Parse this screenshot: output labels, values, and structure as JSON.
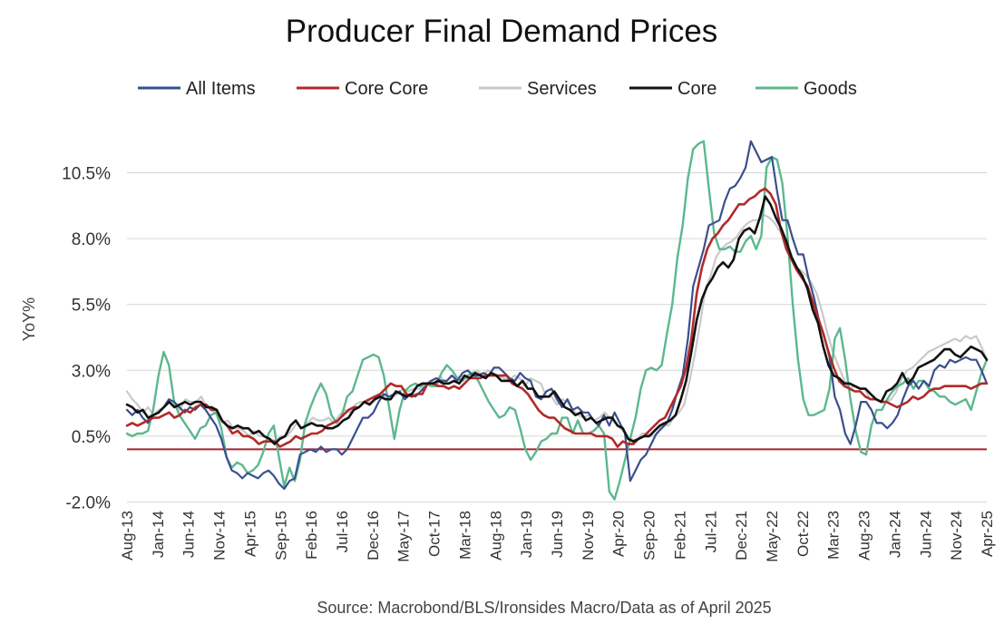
{
  "chart_data": {
    "type": "line",
    "title": "Producer Final Demand Prices",
    "ylabel": "YoY%",
    "xlabel": "",
    "source": "Source: Macrobond/BLS/Ironsides Macro/Data as of April 2025",
    "ylim": [
      -2.0,
      12.0
    ],
    "yticks": [
      -2.0,
      0.5,
      3.0,
      5.5,
      8.0,
      10.5
    ],
    "ytick_labels": [
      "-2.0%",
      "0.5%",
      "3.0%",
      "5.5%",
      "8.0%",
      "10.5%"
    ],
    "x_start": "2013-08",
    "x_end": "2025-04",
    "xtick_labels": [
      "Aug-13",
      "Jan-14",
      "Jun-14",
      "Nov-14",
      "Apr-15",
      "Sep-15",
      "Feb-16",
      "Jul-16",
      "Dec-16",
      "May-17",
      "Oct-17",
      "Mar-18",
      "Aug-18",
      "Jan-19",
      "Jun-19",
      "Nov-19",
      "Apr-20",
      "Sep-20",
      "Feb-21",
      "Jul-21",
      "Dec-21",
      "May-22",
      "Oct-22",
      "Mar-23",
      "Aug-23",
      "Jan-24",
      "Jun-24",
      "Nov-24",
      "Apr-25"
    ],
    "grid": true,
    "legend_position": "top",
    "reference_line": {
      "value": 0.0,
      "color": "#a8232e"
    },
    "series": [
      {
        "name": "All Items",
        "color": "#3a4f8f",
        "values": [
          1.5,
          1.3,
          1.5,
          1.2,
          1.0,
          1.3,
          1.4,
          1.6,
          1.9,
          1.8,
          1.6,
          1.4,
          1.6,
          1.5,
          1.7,
          1.5,
          1.2,
          0.9,
          0.4,
          -0.3,
          -0.8,
          -0.9,
          -1.1,
          -0.9,
          -1.0,
          -1.1,
          -0.9,
          -0.8,
          -1.0,
          -1.3,
          -1.5,
          -1.2,
          -1.1,
          -0.2,
          -0.1,
          0.0,
          -0.1,
          0.1,
          -0.1,
          0.0,
          0.0,
          -0.2,
          0.0,
          0.4,
          0.8,
          1.2,
          1.2,
          1.4,
          1.8,
          2.1,
          2.0,
          2.1,
          2.2,
          1.9,
          2.1,
          2.0,
          2.2,
          2.4,
          2.6,
          2.7,
          2.6,
          2.6,
          2.8,
          2.6,
          2.9,
          3.0,
          2.8,
          2.8,
          2.9,
          2.8,
          3.1,
          3.1,
          2.9,
          2.7,
          2.6,
          2.9,
          2.7,
          2.6,
          2.0,
          1.9,
          2.2,
          2.3,
          1.9,
          1.6,
          1.9,
          1.5,
          1.6,
          1.4,
          1.4,
          1.1,
          0.9,
          1.3,
          0.9,
          1.4,
          1.0,
          0.6,
          -1.2,
          -0.8,
          -0.4,
          -0.2,
          0.2,
          0.6,
          0.8,
          1.0,
          1.5,
          2.2,
          2.8,
          4.2,
          6.2,
          6.9,
          7.6,
          8.5,
          8.6,
          8.7,
          9.4,
          9.9,
          10.0,
          10.3,
          10.7,
          11.7,
          11.3,
          10.9,
          11.0,
          11.1,
          9.8,
          8.7,
          8.7,
          8.0,
          7.4,
          7.4,
          6.5,
          5.8,
          4.9,
          4.3,
          3.5,
          2.0,
          1.5,
          0.6,
          0.2,
          0.9,
          1.8,
          1.8,
          1.5,
          1.0,
          1.0,
          0.8,
          1.0,
          1.3,
          1.9,
          2.4,
          2.6,
          2.3,
          2.6,
          2.4,
          3.0,
          3.2,
          3.1,
          3.4,
          3.3,
          3.4,
          3.5,
          3.4,
          3.4,
          3.0,
          2.5
        ]
      },
      {
        "name": "Core Core",
        "color": "#b22a2a",
        "values": [
          0.9,
          1.0,
          0.9,
          1.0,
          1.1,
          1.2,
          1.2,
          1.3,
          1.4,
          1.2,
          1.3,
          1.5,
          1.4,
          1.6,
          1.7,
          1.7,
          1.5,
          1.5,
          1.1,
          0.9,
          0.6,
          0.7,
          0.5,
          0.5,
          0.4,
          0.2,
          0.3,
          0.3,
          0.3,
          0.1,
          0.2,
          0.3,
          0.5,
          0.4,
          0.5,
          0.6,
          0.6,
          0.7,
          0.9,
          1.0,
          1.1,
          1.3,
          1.5,
          1.6,
          1.6,
          1.8,
          1.9,
          2.0,
          2.1,
          2.3,
          2.5,
          2.4,
          2.4,
          2.1,
          2.0,
          2.1,
          2.1,
          2.5,
          2.5,
          2.4,
          2.4,
          2.3,
          2.4,
          2.3,
          2.5,
          2.7,
          2.7,
          2.7,
          2.8,
          2.8,
          2.8,
          2.8,
          2.8,
          2.5,
          2.4,
          2.3,
          2.1,
          1.8,
          1.5,
          1.3,
          1.2,
          1.2,
          1.0,
          0.8,
          0.7,
          0.6,
          0.6,
          0.6,
          0.6,
          0.5,
          0.5,
          0.5,
          0.4,
          0.1,
          0.3,
          0.2,
          0.2,
          0.4,
          0.5,
          0.7,
          0.9,
          1.1,
          1.2,
          1.6,
          2.0,
          2.4,
          3.1,
          4.2,
          5.9,
          6.9,
          7.6,
          8.0,
          8.2,
          8.5,
          8.7,
          9.0,
          9.3,
          9.3,
          9.5,
          9.6,
          9.8,
          9.9,
          9.7,
          9.3,
          8.3,
          7.6,
          7.2,
          6.8,
          6.5,
          6.2,
          5.6,
          5.0,
          4.4,
          3.7,
          3.1,
          2.6,
          2.4,
          2.3,
          2.2,
          2.2,
          2.0,
          1.9,
          1.9,
          1.8,
          1.8,
          1.7,
          1.6,
          1.7,
          1.8,
          2.0,
          1.9,
          2.0,
          2.2,
          2.3,
          2.3,
          2.4,
          2.4,
          2.4,
          2.4,
          2.4,
          2.3,
          2.4,
          2.5,
          2.5
        ]
      },
      {
        "name": "Services",
        "color": "#c9c9c9",
        "values": [
          2.2,
          1.9,
          1.7,
          1.4,
          1.6,
          1.3,
          1.5,
          1.6,
          1.8,
          1.7,
          1.5,
          1.9,
          1.8,
          1.8,
          2.0,
          1.6,
          1.5,
          1.3,
          1.0,
          1.1,
          0.8,
          0.8,
          0.7,
          0.5,
          0.7,
          0.5,
          0.5,
          0.4,
          0.3,
          0.5,
          0.5,
          0.7,
          1.0,
          0.8,
          1.0,
          1.2,
          1.1,
          1.1,
          1.2,
          1.0,
          1.3,
          1.5,
          1.4,
          1.7,
          1.8,
          1.8,
          1.8,
          1.9,
          2.1,
          1.9,
          2.0,
          2.1,
          2.3,
          2.2,
          2.3,
          2.3,
          2.4,
          2.6,
          2.5,
          2.8,
          2.5,
          2.8,
          2.7,
          2.8,
          2.7,
          2.9,
          3.0,
          2.8,
          3.0,
          2.9,
          2.8,
          2.7,
          2.6,
          2.8,
          2.7,
          2.4,
          2.7,
          2.6,
          2.5,
          2.0,
          2.0,
          1.7,
          1.9,
          1.8,
          1.5,
          1.3,
          1.2,
          1.3,
          1.1,
          1.2,
          1.4,
          1.2,
          1.0,
          0.8,
          0.6,
          0.4,
          0.3,
          0.6,
          0.6,
          0.5,
          0.6,
          1.0,
          0.9,
          1.2,
          1.4,
          1.7,
          2.6,
          3.6,
          4.8,
          6.1,
          6.6,
          7.3,
          7.6,
          7.8,
          7.9,
          8.1,
          8.4,
          8.6,
          8.7,
          8.7,
          8.9,
          8.8,
          8.6,
          8.3,
          7.9,
          7.4,
          6.9,
          6.8,
          6.6,
          6.3,
          5.9,
          5.2,
          4.4,
          3.7,
          3.2,
          2.7,
          2.3,
          2.4,
          2.3,
          2.3,
          1.9,
          1.9,
          1.8,
          1.8,
          1.9,
          2.2,
          2.7,
          3.0,
          3.1,
          3.3,
          3.5,
          3.7,
          3.8,
          3.9,
          4.0,
          4.1,
          4.2,
          4.1,
          4.3,
          4.2,
          4.3,
          3.9,
          3.4
        ]
      },
      {
        "name": "Core",
        "color": "#111111",
        "values": [
          1.7,
          1.6,
          1.4,
          1.5,
          1.2,
          1.3,
          1.4,
          1.6,
          1.8,
          1.6,
          1.7,
          1.8,
          1.7,
          1.8,
          1.8,
          1.6,
          1.6,
          1.5,
          1.1,
          0.9,
          0.8,
          0.9,
          0.8,
          0.8,
          0.6,
          0.7,
          0.5,
          0.4,
          0.2,
          0.4,
          0.5,
          0.9,
          1.1,
          0.8,
          0.9,
          1.0,
          0.9,
          0.9,
          0.8,
          0.8,
          0.9,
          1.1,
          1.2,
          1.5,
          1.6,
          1.8,
          1.7,
          1.9,
          2.0,
          1.9,
          1.9,
          2.2,
          2.1,
          2.0,
          2.1,
          2.4,
          2.5,
          2.5,
          2.5,
          2.6,
          2.5,
          2.5,
          2.6,
          2.5,
          2.8,
          2.7,
          2.9,
          2.8,
          2.7,
          2.9,
          2.8,
          2.6,
          2.6,
          2.6,
          2.4,
          2.6,
          2.3,
          2.3,
          2.0,
          2.0,
          2.0,
          2.2,
          1.9,
          1.6,
          1.5,
          1.3,
          1.4,
          1.1,
          1.2,
          1.0,
          1.1,
          1.2,
          1.2,
          0.9,
          0.8,
          0.4,
          0.3,
          0.4,
          0.5,
          0.5,
          0.7,
          0.9,
          1.0,
          1.1,
          1.3,
          1.9,
          2.6,
          3.7,
          4.9,
          5.7,
          6.2,
          6.5,
          6.9,
          7.1,
          6.9,
          7.2,
          8.0,
          8.3,
          8.4,
          8.2,
          8.8,
          9.6,
          9.3,
          8.8,
          8.4,
          7.9,
          7.3,
          6.9,
          6.6,
          6.1,
          5.3,
          4.8,
          3.9,
          3.2,
          2.8,
          2.7,
          2.5,
          2.5,
          2.4,
          2.3,
          2.3,
          2.1,
          1.9,
          1.8,
          2.2,
          2.3,
          2.5,
          2.9,
          2.5,
          2.7,
          3.1,
          3.2,
          3.3,
          3.4,
          3.6,
          3.8,
          3.8,
          3.6,
          3.5,
          3.7,
          3.9,
          3.8,
          3.7,
          3.4
        ]
      },
      {
        "name": "Goods",
        "color": "#5cb88e",
        "values": [
          0.6,
          0.5,
          0.6,
          0.6,
          0.7,
          1.5,
          2.8,
          3.7,
          3.2,
          1.8,
          1.3,
          1.0,
          0.7,
          0.4,
          0.8,
          0.9,
          1.3,
          1.4,
          0.8,
          -0.3,
          -0.7,
          -0.5,
          -0.6,
          -0.9,
          -0.8,
          -0.6,
          -0.1,
          0.6,
          0.9,
          -0.3,
          -1.4,
          -0.7,
          -1.2,
          -0.4,
          1.0,
          1.6,
          2.1,
          2.5,
          2.1,
          1.3,
          1.0,
          1.3,
          2.0,
          2.2,
          2.8,
          3.4,
          3.5,
          3.6,
          3.5,
          2.8,
          1.6,
          0.4,
          1.5,
          2.2,
          2.4,
          2.5,
          2.4,
          2.5,
          2.4,
          2.4,
          2.9,
          3.2,
          3.0,
          2.7,
          2.6,
          2.8,
          2.9,
          2.6,
          2.2,
          1.8,
          1.5,
          1.2,
          1.3,
          1.6,
          1.5,
          0.8,
          0.0,
          -0.4,
          -0.1,
          0.3,
          0.4,
          0.6,
          0.6,
          1.2,
          1.2,
          0.6,
          1.1,
          0.6,
          0.6,
          0.7,
          0.9,
          0.6,
          -1.6,
          -1.9,
          -1.2,
          -0.4,
          0.4,
          1.2,
          2.3,
          3.0,
          3.1,
          3.0,
          3.2,
          4.4,
          5.5,
          7.3,
          8.5,
          10.3,
          11.4,
          11.6,
          11.7,
          9.9,
          8.2,
          7.6,
          7.6,
          7.7,
          7.5,
          7.5,
          7.9,
          8.1,
          7.6,
          8.1,
          10.7,
          11.1,
          11.0,
          10.1,
          8.1,
          5.5,
          3.4,
          1.9,
          1.3,
          1.3,
          1.4,
          1.5,
          2.3,
          4.2,
          4.6,
          3.4,
          1.9,
          0.7,
          -0.1,
          -0.2,
          0.9,
          1.5,
          1.5,
          1.9,
          2.2,
          2.4,
          2.5,
          2.7,
          2.3,
          2.6,
          2.6,
          2.3,
          2.2,
          2.0,
          2.0,
          1.8,
          1.7,
          1.8,
          1.9,
          1.5,
          2.2,
          2.9,
          3.4
        ]
      }
    ]
  }
}
